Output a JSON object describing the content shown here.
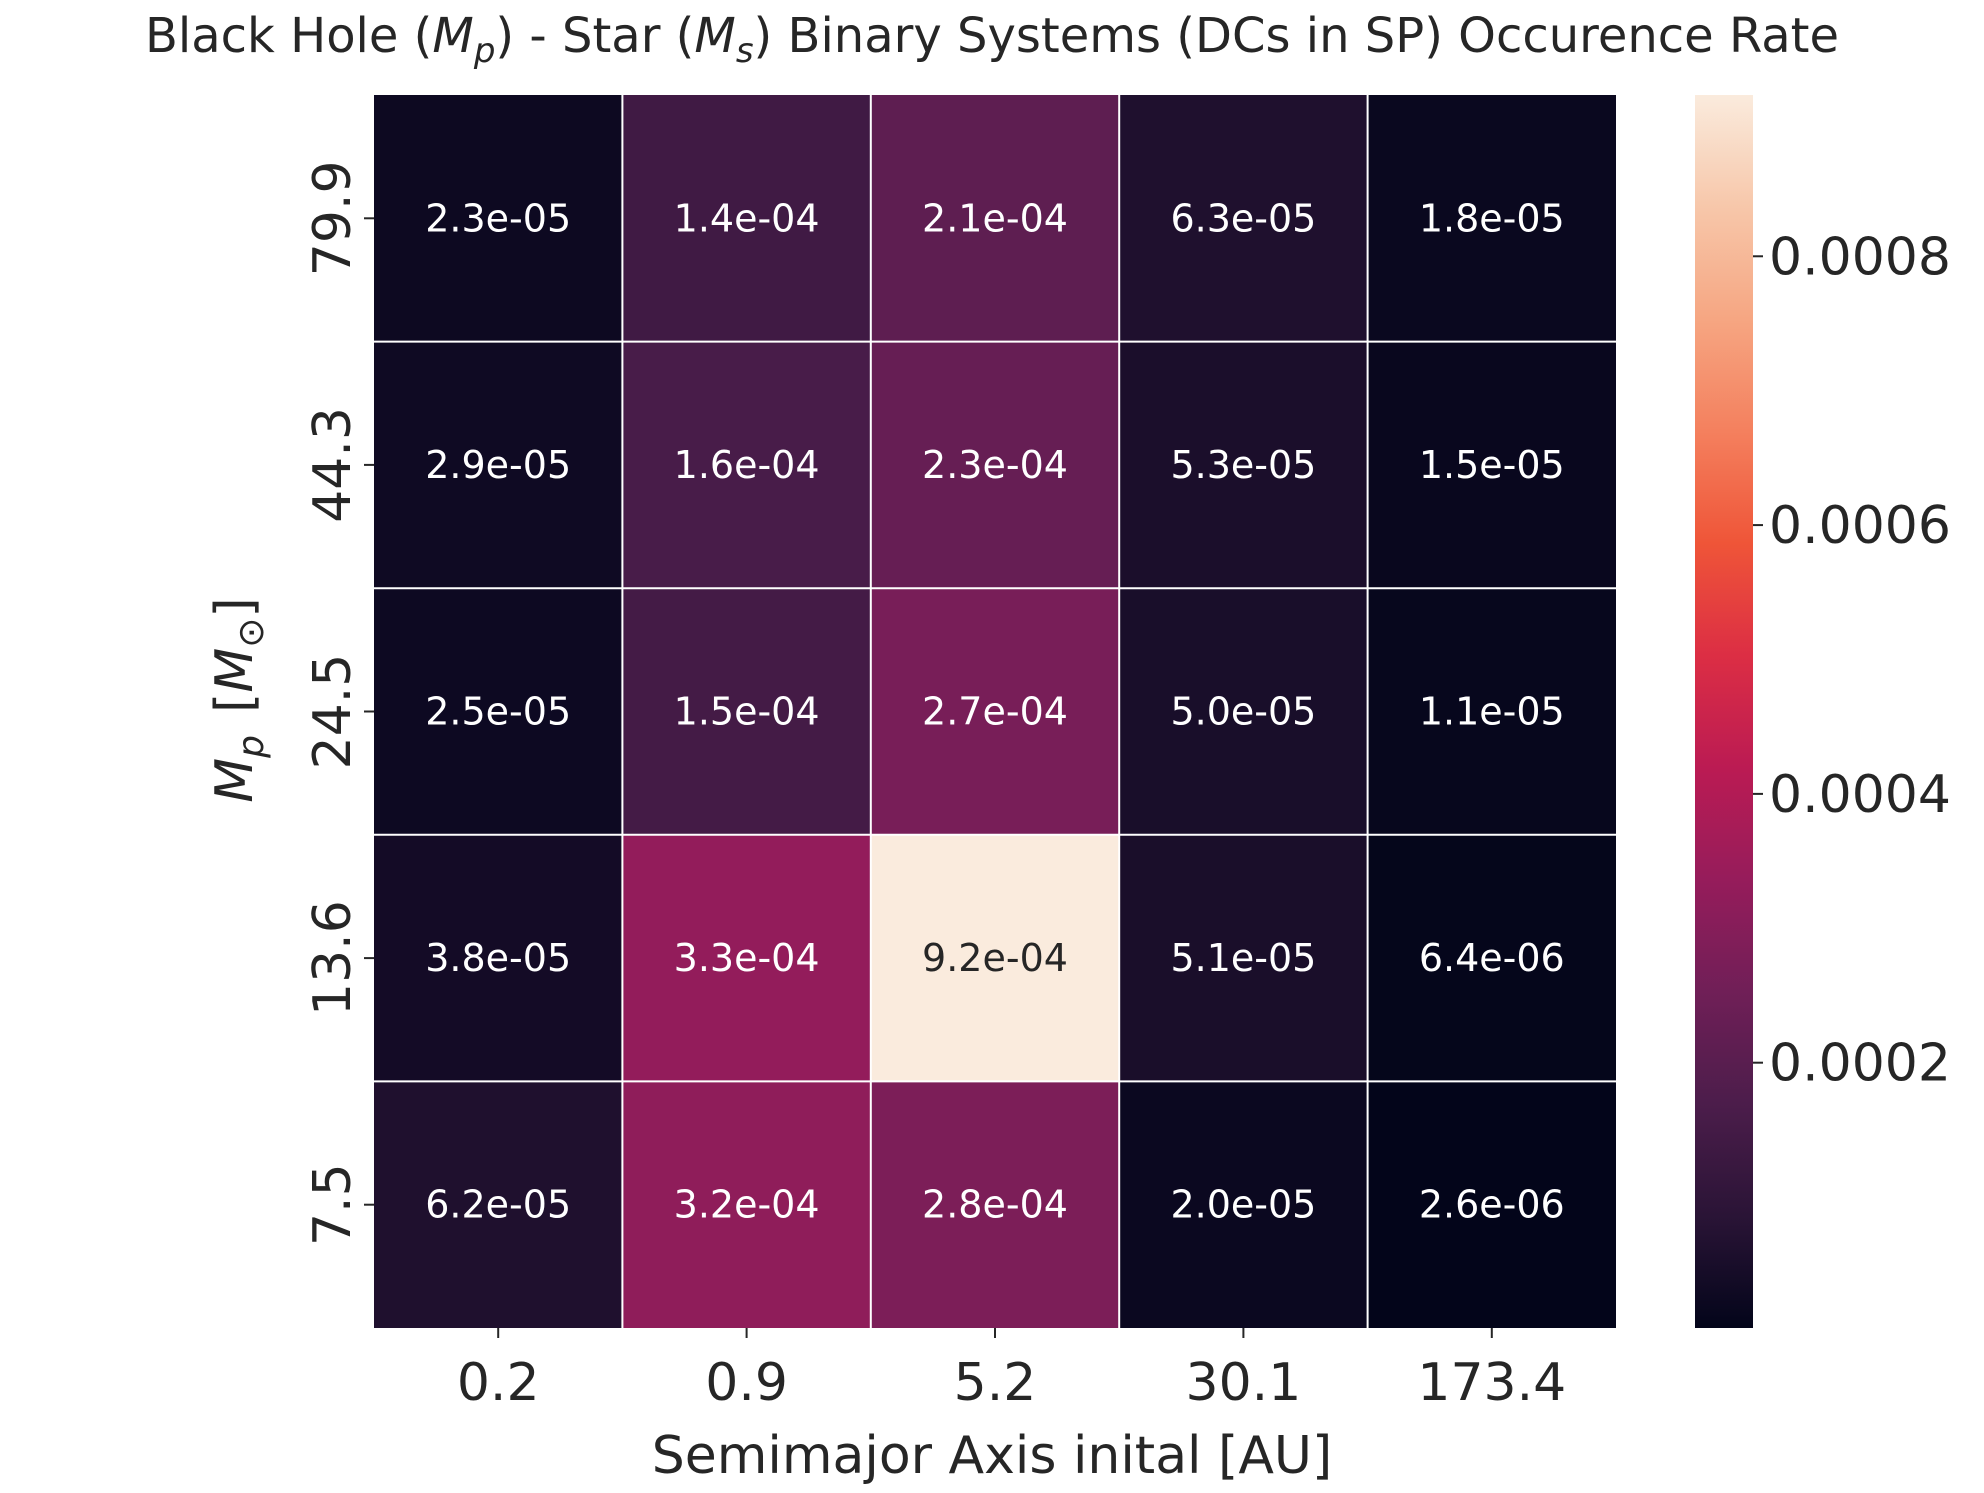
{
  "chart_data": {
    "type": "heatmap",
    "title_parts": {
      "pre": "Black Hole (",
      "m1": "M",
      "s1": "p",
      "mid": ") - Star (",
      "m2": "M",
      "s2": "s",
      "post": ") Binary Systems (DCs in SP) Occurence Rate"
    },
    "xlabel": "Semimajor Axis inital [AU]",
    "ylabel_parts": {
      "m": "M",
      "sub": "p",
      "unit_open": "[",
      "unit_m": "M",
      "unit_sub": "⊙",
      "unit_close": "]"
    },
    "x_categories": [
      "0.2",
      "0.9",
      "5.2",
      "30.1",
      "173.4"
    ],
    "y_categories": [
      "79.9",
      "44.3",
      "24.5",
      "13.6",
      "7.5"
    ],
    "values": [
      [
        2.3e-05,
        0.00014,
        0.00021,
        6.3e-05,
        1.8e-05
      ],
      [
        2.9e-05,
        0.00016,
        0.00023,
        5.3e-05,
        1.5e-05
      ],
      [
        2.5e-05,
        0.00015,
        0.00027,
        5e-05,
        1.1e-05
      ],
      [
        3.8e-05,
        0.00033,
        0.00092,
        5.1e-05,
        6.4e-06
      ],
      [
        6.2e-05,
        0.00032,
        0.00028,
        2e-05,
        2.6e-06
      ]
    ],
    "cell_labels": [
      [
        "2.3e-05",
        "1.4e-04",
        "2.1e-04",
        "6.3e-05",
        "1.8e-05"
      ],
      [
        "2.9e-05",
        "1.6e-04",
        "2.3e-04",
        "5.3e-05",
        "1.5e-05"
      ],
      [
        "2.5e-05",
        "1.5e-04",
        "2.7e-04",
        "5.0e-05",
        "1.1e-05"
      ],
      [
        "3.8e-05",
        "3.3e-04",
        "9.2e-04",
        "5.1e-05",
        "6.4e-06"
      ],
      [
        "6.2e-05",
        "3.2e-04",
        "2.8e-04",
        "2.0e-05",
        "2.6e-06"
      ]
    ],
    "colorbar": {
      "vmin": 2.6e-06,
      "vmax": 0.00092,
      "ticks": [
        0.0002,
        0.0004,
        0.0006,
        0.0008
      ],
      "tick_labels": [
        "0.0002",
        "0.0004",
        "0.0006",
        "0.0008"
      ],
      "colormap": "rocket"
    },
    "colormap_stops": [
      "#03051a",
      "#2a1436",
      "#4c1d4b",
      "#701f57",
      "#961c5b",
      "#bb1b53",
      "#dc2e44",
      "#ef5538",
      "#f4805e",
      "#f6a682",
      "#f7c7aa",
      "#faebdd"
    ],
    "grid_line_color": "#ffffff"
  }
}
